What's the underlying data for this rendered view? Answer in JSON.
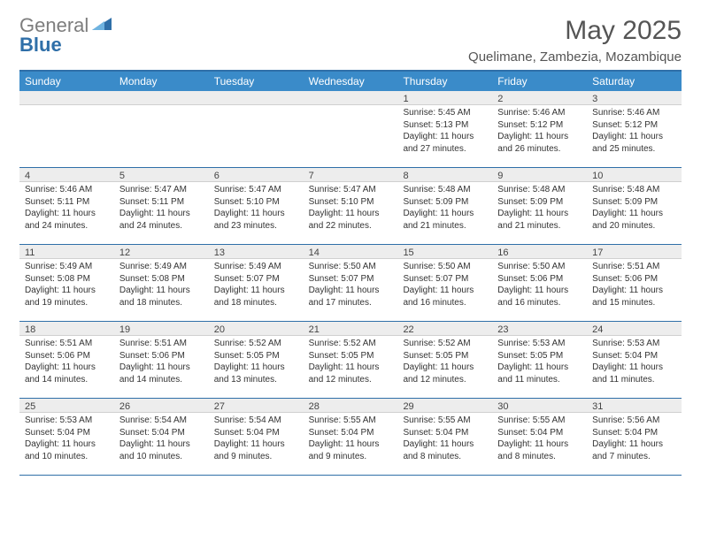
{
  "logo": {
    "part1": "General",
    "part2": "Blue"
  },
  "title": "May 2025",
  "location": "Quelimane, Zambezia, Mozambique",
  "colors": {
    "header_bg": "#3a8bc9",
    "border_blue": "#2f6fa8",
    "shade_grey": "#ededed",
    "text": "#333333"
  },
  "dayNames": [
    "Sunday",
    "Monday",
    "Tuesday",
    "Wednesday",
    "Thursday",
    "Friday",
    "Saturday"
  ],
  "weeks": [
    [
      null,
      null,
      null,
      null,
      {
        "n": "1",
        "sr": "Sunrise: 5:45 AM",
        "ss": "Sunset: 5:13 PM",
        "dl": "Daylight: 11 hours and 27 minutes."
      },
      {
        "n": "2",
        "sr": "Sunrise: 5:46 AM",
        "ss": "Sunset: 5:12 PM",
        "dl": "Daylight: 11 hours and 26 minutes."
      },
      {
        "n": "3",
        "sr": "Sunrise: 5:46 AM",
        "ss": "Sunset: 5:12 PM",
        "dl": "Daylight: 11 hours and 25 minutes."
      }
    ],
    [
      {
        "n": "4",
        "sr": "Sunrise: 5:46 AM",
        "ss": "Sunset: 5:11 PM",
        "dl": "Daylight: 11 hours and 24 minutes."
      },
      {
        "n": "5",
        "sr": "Sunrise: 5:47 AM",
        "ss": "Sunset: 5:11 PM",
        "dl": "Daylight: 11 hours and 24 minutes."
      },
      {
        "n": "6",
        "sr": "Sunrise: 5:47 AM",
        "ss": "Sunset: 5:10 PM",
        "dl": "Daylight: 11 hours and 23 minutes."
      },
      {
        "n": "7",
        "sr": "Sunrise: 5:47 AM",
        "ss": "Sunset: 5:10 PM",
        "dl": "Daylight: 11 hours and 22 minutes."
      },
      {
        "n": "8",
        "sr": "Sunrise: 5:48 AM",
        "ss": "Sunset: 5:09 PM",
        "dl": "Daylight: 11 hours and 21 minutes."
      },
      {
        "n": "9",
        "sr": "Sunrise: 5:48 AM",
        "ss": "Sunset: 5:09 PM",
        "dl": "Daylight: 11 hours and 21 minutes."
      },
      {
        "n": "10",
        "sr": "Sunrise: 5:48 AM",
        "ss": "Sunset: 5:09 PM",
        "dl": "Daylight: 11 hours and 20 minutes."
      }
    ],
    [
      {
        "n": "11",
        "sr": "Sunrise: 5:49 AM",
        "ss": "Sunset: 5:08 PM",
        "dl": "Daylight: 11 hours and 19 minutes."
      },
      {
        "n": "12",
        "sr": "Sunrise: 5:49 AM",
        "ss": "Sunset: 5:08 PM",
        "dl": "Daylight: 11 hours and 18 minutes."
      },
      {
        "n": "13",
        "sr": "Sunrise: 5:49 AM",
        "ss": "Sunset: 5:07 PM",
        "dl": "Daylight: 11 hours and 18 minutes."
      },
      {
        "n": "14",
        "sr": "Sunrise: 5:50 AM",
        "ss": "Sunset: 5:07 PM",
        "dl": "Daylight: 11 hours and 17 minutes."
      },
      {
        "n": "15",
        "sr": "Sunrise: 5:50 AM",
        "ss": "Sunset: 5:07 PM",
        "dl": "Daylight: 11 hours and 16 minutes."
      },
      {
        "n": "16",
        "sr": "Sunrise: 5:50 AM",
        "ss": "Sunset: 5:06 PM",
        "dl": "Daylight: 11 hours and 16 minutes."
      },
      {
        "n": "17",
        "sr": "Sunrise: 5:51 AM",
        "ss": "Sunset: 5:06 PM",
        "dl": "Daylight: 11 hours and 15 minutes."
      }
    ],
    [
      {
        "n": "18",
        "sr": "Sunrise: 5:51 AM",
        "ss": "Sunset: 5:06 PM",
        "dl": "Daylight: 11 hours and 14 minutes."
      },
      {
        "n": "19",
        "sr": "Sunrise: 5:51 AM",
        "ss": "Sunset: 5:06 PM",
        "dl": "Daylight: 11 hours and 14 minutes."
      },
      {
        "n": "20",
        "sr": "Sunrise: 5:52 AM",
        "ss": "Sunset: 5:05 PM",
        "dl": "Daylight: 11 hours and 13 minutes."
      },
      {
        "n": "21",
        "sr": "Sunrise: 5:52 AM",
        "ss": "Sunset: 5:05 PM",
        "dl": "Daylight: 11 hours and 12 minutes."
      },
      {
        "n": "22",
        "sr": "Sunrise: 5:52 AM",
        "ss": "Sunset: 5:05 PM",
        "dl": "Daylight: 11 hours and 12 minutes."
      },
      {
        "n": "23",
        "sr": "Sunrise: 5:53 AM",
        "ss": "Sunset: 5:05 PM",
        "dl": "Daylight: 11 hours and 11 minutes."
      },
      {
        "n": "24",
        "sr": "Sunrise: 5:53 AM",
        "ss": "Sunset: 5:04 PM",
        "dl": "Daylight: 11 hours and 11 minutes."
      }
    ],
    [
      {
        "n": "25",
        "sr": "Sunrise: 5:53 AM",
        "ss": "Sunset: 5:04 PM",
        "dl": "Daylight: 11 hours and 10 minutes."
      },
      {
        "n": "26",
        "sr": "Sunrise: 5:54 AM",
        "ss": "Sunset: 5:04 PM",
        "dl": "Daylight: 11 hours and 10 minutes."
      },
      {
        "n": "27",
        "sr": "Sunrise: 5:54 AM",
        "ss": "Sunset: 5:04 PM",
        "dl": "Daylight: 11 hours and 9 minutes."
      },
      {
        "n": "28",
        "sr": "Sunrise: 5:55 AM",
        "ss": "Sunset: 5:04 PM",
        "dl": "Daylight: 11 hours and 9 minutes."
      },
      {
        "n": "29",
        "sr": "Sunrise: 5:55 AM",
        "ss": "Sunset: 5:04 PM",
        "dl": "Daylight: 11 hours and 8 minutes."
      },
      {
        "n": "30",
        "sr": "Sunrise: 5:55 AM",
        "ss": "Sunset: 5:04 PM",
        "dl": "Daylight: 11 hours and 8 minutes."
      },
      {
        "n": "31",
        "sr": "Sunrise: 5:56 AM",
        "ss": "Sunset: 5:04 PM",
        "dl": "Daylight: 11 hours and 7 minutes."
      }
    ]
  ]
}
